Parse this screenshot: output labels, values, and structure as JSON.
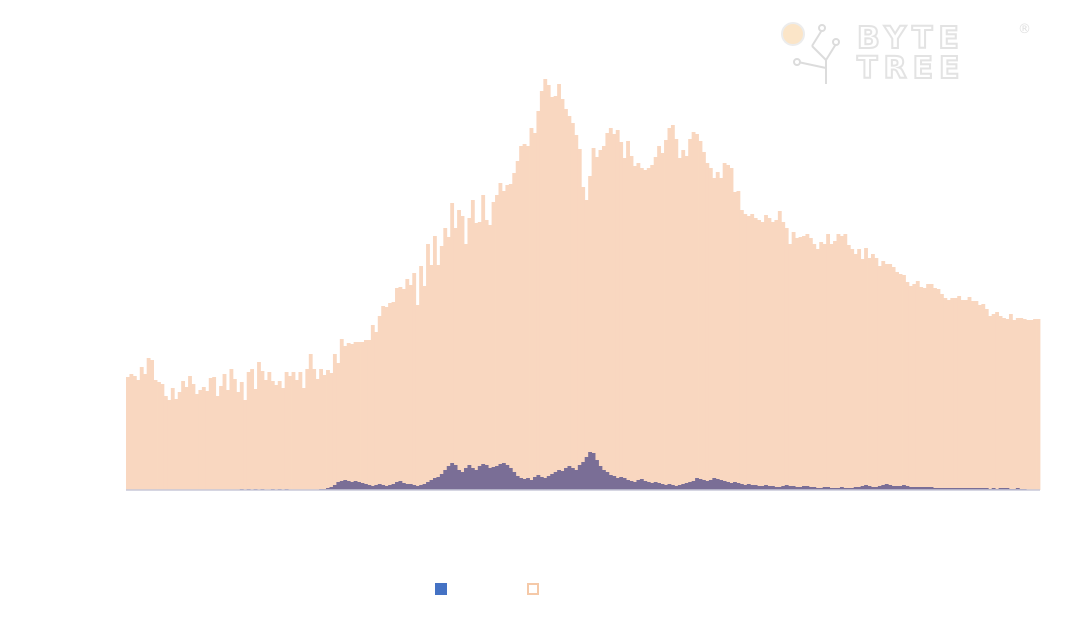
{
  "chart_data": {
    "type": "bar",
    "title": "",
    "xlabel": "",
    "ylabel": "",
    "ylim": [
      0,
      420
    ],
    "grid": false,
    "legend_position": "bottom-center",
    "colors": {
      "series_a": "#7a6e96",
      "series_b": "#f9d7c0",
      "legend_a": "#4472c4",
      "legend_b_border": "#f5c9a8"
    },
    "series": [
      {
        "values": [
          0,
          0,
          0,
          0,
          0,
          0,
          0,
          0,
          0,
          0,
          0,
          0,
          0,
          0,
          0,
          0,
          0,
          0,
          0,
          0,
          0,
          0,
          0,
          0,
          0,
          0,
          0,
          0,
          0,
          0,
          0,
          0,
          0,
          1,
          0,
          1,
          0,
          1,
          0,
          1,
          0,
          0,
          1,
          0,
          1,
          0,
          1,
          0,
          0,
          0,
          0,
          0,
          0,
          0,
          0,
          0,
          1,
          1,
          2,
          3,
          5,
          8,
          9,
          10,
          9,
          8,
          9,
          8,
          7,
          6,
          5,
          4,
          5,
          6,
          5,
          4,
          5,
          6,
          8,
          9,
          7,
          6,
          6,
          5,
          4,
          5,
          6,
          8,
          10,
          12,
          13,
          16,
          20,
          24,
          27,
          25,
          20,
          18,
          22,
          25,
          22,
          20,
          24,
          26,
          25,
          22,
          23,
          24,
          26,
          27,
          25,
          22,
          18,
          14,
          12,
          11,
          12,
          10,
          13,
          15,
          13,
          12,
          14,
          16,
          18,
          20,
          19,
          22,
          24,
          22,
          20,
          25,
          28,
          33,
          38,
          37,
          30,
          24,
          20,
          18,
          15,
          14,
          12,
          13,
          12,
          10,
          9,
          8,
          10,
          11,
          9,
          8,
          7,
          8,
          7,
          6,
          5,
          6,
          5,
          4,
          5,
          6,
          7,
          8,
          9,
          12,
          11,
          10,
          9,
          10,
          12,
          11,
          10,
          9,
          8,
          7,
          8,
          7,
          6,
          5,
          6,
          5,
          5,
          4,
          4,
          5,
          4,
          4,
          3,
          3,
          4,
          5,
          4,
          4,
          3,
          3,
          4,
          4,
          3,
          3,
          2,
          2,
          3,
          3,
          2,
          2,
          2,
          3,
          2,
          2,
          2,
          3,
          3,
          4,
          5,
          4,
          3,
          3,
          4,
          5,
          6,
          5,
          4,
          4,
          4,
          5,
          4,
          3,
          3,
          3,
          3,
          3,
          3,
          3,
          2,
          2,
          2,
          2,
          2,
          2,
          2,
          2,
          2,
          2,
          2,
          2,
          2,
          2,
          2,
          2,
          1,
          2,
          1,
          2,
          2,
          2,
          1,
          1,
          2,
          1,
          1
        ]
      },
      {
        "values": [
          113,
          116,
          114,
          110,
          123,
          116,
          132,
          130,
          110,
          108,
          106,
          94,
          90,
          102,
          91,
          98,
          109,
          103,
          114,
          106,
          96,
          100,
          103,
          99,
          112,
          113,
          94,
          104,
          116,
          100,
          121,
          111,
          98,
          108,
          90,
          118,
          121,
          101,
          128,
          119,
          110,
          118,
          109,
          105,
          109,
          102,
          118,
          114,
          118,
          110,
          118,
          102,
          121,
          136,
          121,
          111,
          121,
          115,
          120,
          117,
          136,
          127,
          151,
          144,
          147,
          146,
          148,
          148,
          148,
          150,
          150,
          165,
          158,
          174,
          184,
          183,
          187,
          188,
          202,
          203,
          201,
          211,
          205,
          217,
          185,
          224,
          204,
          246,
          225,
          254,
          225,
          244,
          262,
          253,
          287,
          262,
          280,
          274,
          246,
          272,
          290,
          267,
          268,
          295,
          270,
          265,
          288,
          295,
          307,
          299,
          305,
          306,
          317,
          329,
          344,
          346,
          344,
          362,
          357,
          379,
          399,
          411,
          405,
          393,
          394,
          406,
          391,
          381,
          374,
          367,
          355,
          341,
          303,
          290,
          314,
          342,
          333,
          340,
          344,
          357,
          362,
          356,
          360,
          348,
          332,
          349,
          334,
          324,
          327,
          322,
          320,
          322,
          325,
          333,
          344,
          337,
          350,
          362,
          365,
          351,
          332,
          340,
          334,
          351,
          358,
          356,
          349,
          338,
          327,
          322,
          312,
          318,
          312,
          327,
          325,
          322,
          298,
          299,
          280,
          276,
          274,
          276,
          272,
          270,
          268,
          275,
          272,
          268,
          270,
          279,
          268,
          262,
          246,
          258,
          252,
          253,
          254,
          256,
          252,
          246,
          241,
          248,
          246,
          256,
          246,
          249,
          256,
          254,
          256,
          245,
          241,
          236,
          241,
          231,
          242,
          232,
          236,
          232,
          224,
          229,
          226,
          226,
          223,
          218,
          216,
          215,
          208,
          204,
          206,
          209,
          203,
          202,
          206,
          206,
          202,
          201,
          196,
          192,
          190,
          192,
          192,
          194,
          190,
          190,
          193,
          189,
          189,
          185,
          186,
          181,
          174,
          176,
          178,
          174,
          172,
          171,
          176,
          170,
          172,
          172,
          171,
          170,
          170,
          171,
          171
        ]
      }
    ]
  },
  "logo": {
    "text_top": "BYTE",
    "text_bottom": "TREE",
    "registered": "®"
  }
}
